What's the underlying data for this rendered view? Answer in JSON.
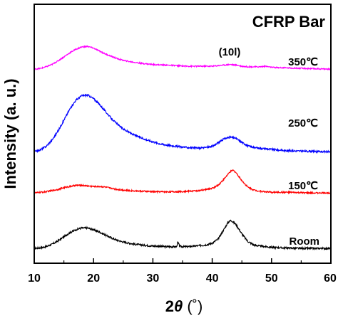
{
  "chart_data": {
    "type": "line",
    "title": "CFRP Bar",
    "xlabel_prefix": "2",
    "xlabel_symbol": "θ",
    "xlabel_unit": " (˚)",
    "ylabel": "Intensity (a. u.)",
    "xlim": [
      10,
      60
    ],
    "x_ticks": [
      10,
      20,
      30,
      40,
      50,
      60
    ],
    "y_ticks_shown": false,
    "grid": false,
    "legend": "none",
    "annotations": [
      {
        "text": "(10l)",
        "x": 43
      }
    ],
    "series": [
      {
        "name": "Room",
        "color": "#000000",
        "offset": 0,
        "noise": 1.5,
        "points": [
          [
            10,
            1
          ],
          [
            11,
            2
          ],
          [
            12,
            4
          ],
          [
            13,
            8
          ],
          [
            14,
            14
          ],
          [
            15,
            21
          ],
          [
            16,
            28
          ],
          [
            17,
            33
          ],
          [
            18,
            36
          ],
          [
            19,
            36
          ],
          [
            20,
            33
          ],
          [
            21,
            29
          ],
          [
            22,
            24
          ],
          [
            23,
            19
          ],
          [
            24,
            15
          ],
          [
            25,
            12
          ],
          [
            26,
            10
          ],
          [
            27,
            8
          ],
          [
            28,
            7
          ],
          [
            29,
            6
          ],
          [
            30,
            5
          ],
          [
            31,
            5
          ],
          [
            32,
            4
          ],
          [
            33,
            4
          ],
          [
            34,
            4
          ],
          [
            34.2,
            12
          ],
          [
            34.5,
            5
          ],
          [
            35,
            4
          ],
          [
            36,
            4
          ],
          [
            37,
            5
          ],
          [
            38,
            6
          ],
          [
            39,
            7
          ],
          [
            40,
            10
          ],
          [
            41,
            17
          ],
          [
            42,
            34
          ],
          [
            42.7,
            46
          ],
          [
            43.2,
            49
          ],
          [
            44,
            42
          ],
          [
            45,
            26
          ],
          [
            46,
            13
          ],
          [
            47,
            7
          ],
          [
            48,
            5
          ],
          [
            50,
            3
          ],
          [
            52,
            2
          ],
          [
            55,
            1
          ],
          [
            58,
            1
          ],
          [
            60,
            1
          ]
        ]
      },
      {
        "name": "150℃",
        "color": "#ff0000",
        "offset": 1,
        "noise": 1.2,
        "points": [
          [
            10,
            1
          ],
          [
            12,
            3
          ],
          [
            14,
            7
          ],
          [
            15,
            10
          ],
          [
            16,
            12
          ],
          [
            17,
            14
          ],
          [
            18,
            14
          ],
          [
            19,
            13
          ],
          [
            20,
            12
          ],
          [
            21,
            12
          ],
          [
            22,
            11
          ],
          [
            23,
            9
          ],
          [
            24,
            7
          ],
          [
            25,
            6
          ],
          [
            26,
            5
          ],
          [
            28,
            4
          ],
          [
            30,
            3
          ],
          [
            32,
            3
          ],
          [
            34,
            3
          ],
          [
            36,
            4
          ],
          [
            38,
            5
          ],
          [
            40,
            9
          ],
          [
            41,
            14
          ],
          [
            42,
            25
          ],
          [
            43,
            37
          ],
          [
            43.5,
            40
          ],
          [
            44,
            36
          ],
          [
            45,
            22
          ],
          [
            46,
            11
          ],
          [
            47,
            6
          ],
          [
            48,
            4
          ],
          [
            50,
            2
          ],
          [
            53,
            2
          ],
          [
            56,
            1
          ],
          [
            60,
            1
          ]
        ]
      },
      {
        "name": "250℃",
        "color": "#0000ff",
        "offset": 2,
        "noise": 1.5,
        "points": [
          [
            10,
            1
          ],
          [
            11,
            4
          ],
          [
            12,
            10
          ],
          [
            13,
            21
          ],
          [
            14,
            36
          ],
          [
            15,
            55
          ],
          [
            16,
            74
          ],
          [
            17,
            89
          ],
          [
            18,
            97
          ],
          [
            19,
            98
          ],
          [
            20,
            92
          ],
          [
            21,
            82
          ],
          [
            22,
            70
          ],
          [
            23,
            58
          ],
          [
            24,
            48
          ],
          [
            25,
            40
          ],
          [
            26,
            34
          ],
          [
            27,
            29
          ],
          [
            28,
            25
          ],
          [
            29,
            21
          ],
          [
            30,
            18
          ],
          [
            31,
            15
          ],
          [
            32,
            13
          ],
          [
            34,
            10
          ],
          [
            36,
            8
          ],
          [
            38,
            7
          ],
          [
            40,
            10
          ],
          [
            41,
            16
          ],
          [
            42,
            23
          ],
          [
            43,
            26
          ],
          [
            44,
            24
          ],
          [
            45,
            17
          ],
          [
            46,
            11
          ],
          [
            47,
            8
          ],
          [
            48,
            7
          ],
          [
            50,
            5
          ],
          [
            52,
            3
          ],
          [
            55,
            2
          ],
          [
            58,
            1
          ],
          [
            60,
            1
          ]
        ]
      },
      {
        "name": "350℃",
        "color": "#ff00ff",
        "offset": 3,
        "noise": 1.0,
        "points": [
          [
            10,
            1
          ],
          [
            11,
            2
          ],
          [
            12,
            5
          ],
          [
            13,
            9
          ],
          [
            14,
            15
          ],
          [
            15,
            22
          ],
          [
            16,
            29
          ],
          [
            17,
            35
          ],
          [
            18,
            39
          ],
          [
            19,
            40
          ],
          [
            20,
            37
          ],
          [
            21,
            32
          ],
          [
            22,
            27
          ],
          [
            23,
            23
          ],
          [
            24,
            19
          ],
          [
            25,
            16
          ],
          [
            26,
            14
          ],
          [
            28,
            11
          ],
          [
            30,
            9
          ],
          [
            32,
            8
          ],
          [
            34,
            7
          ],
          [
            36,
            6
          ],
          [
            38,
            6
          ],
          [
            40,
            6
          ],
          [
            41,
            7
          ],
          [
            42,
            8
          ],
          [
            43,
            9
          ],
          [
            44,
            8
          ],
          [
            45,
            6
          ],
          [
            46,
            5
          ],
          [
            48,
            5
          ],
          [
            49,
            6
          ],
          [
            50,
            4
          ],
          [
            53,
            3
          ],
          [
            56,
            2
          ],
          [
            60,
            1
          ]
        ]
      }
    ]
  }
}
